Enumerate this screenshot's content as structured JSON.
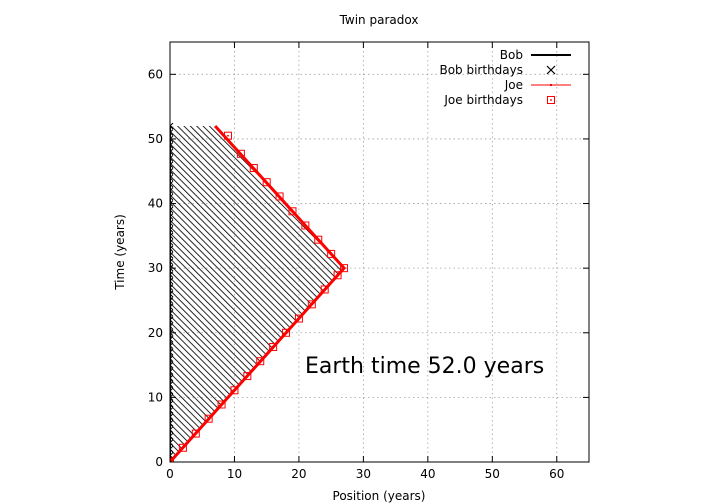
{
  "chart_data": {
    "type": "line",
    "title": "Twin paradox",
    "xlabel": "Position (years)",
    "ylabel": "Time (years)",
    "xlim": [
      0,
      65
    ],
    "ylim": [
      0,
      65
    ],
    "x_ticks": [
      0,
      10,
      20,
      30,
      40,
      50,
      60
    ],
    "y_ticks": [
      0,
      10,
      20,
      30,
      40,
      50,
      60
    ],
    "x_tick_labels": [
      "0",
      "10",
      "20",
      "30",
      "40",
      "50",
      "60"
    ],
    "y_tick_labels": [
      "0",
      "10",
      "20",
      "30",
      "40",
      "50",
      "60"
    ],
    "grid": true,
    "legend_position": "top-right",
    "annotation": "Earth time 52.0 years",
    "colors": {
      "bob": "#000000",
      "joe": "#ff0000"
    },
    "legend": [
      {
        "label": "Bob",
        "style": "line"
      },
      {
        "label": "Bob birthdays",
        "style": "x-marker"
      },
      {
        "label": "Joe",
        "style": "line-point"
      },
      {
        "label": "Joe birthdays",
        "style": "square-marker"
      }
    ],
    "series": [
      {
        "name": "Bob",
        "x": [
          0,
          0
        ],
        "y": [
          0,
          52
        ]
      },
      {
        "name": "Bob birthdays",
        "x": [
          0,
          0,
          0,
          0,
          0,
          0,
          0,
          0,
          0,
          0,
          0,
          0,
          0,
          0,
          0,
          0,
          0,
          0,
          0,
          0,
          0,
          0,
          0,
          0,
          0,
          0,
          0,
          0,
          0,
          0,
          0,
          0,
          0,
          0,
          0,
          0,
          0,
          0,
          0,
          0,
          0,
          0,
          0,
          0,
          0,
          0,
          0,
          0,
          0,
          0,
          0,
          0,
          0
        ],
        "y": [
          0,
          1,
          2,
          3,
          4,
          5,
          6,
          7,
          8,
          9,
          10,
          11,
          12,
          13,
          14,
          15,
          16,
          17,
          18,
          19,
          20,
          21,
          22,
          23,
          24,
          25,
          26,
          27,
          28,
          29,
          30,
          31,
          32,
          33,
          34,
          35,
          36,
          37,
          38,
          39,
          40,
          41,
          42,
          43,
          44,
          45,
          46,
          47,
          48,
          49,
          50,
          51,
          52
        ]
      },
      {
        "name": "Joe",
        "x": [
          0,
          27,
          7
        ],
        "y": [
          0,
          30,
          52
        ]
      },
      {
        "name": "Joe birthdays",
        "x": [
          0,
          2,
          4,
          6,
          8,
          10,
          12,
          14,
          16,
          18,
          20,
          22,
          24,
          26,
          27,
          25,
          23,
          21,
          19,
          17,
          15,
          13,
          11,
          9
        ],
        "y": [
          0,
          2.2,
          4.4,
          6.7,
          8.9,
          11.1,
          13.3,
          15.6,
          17.8,
          20.0,
          22.2,
          24.4,
          26.7,
          28.9,
          30.0,
          32.2,
          34.4,
          36.6,
          38.8,
          41.1,
          43.3,
          45.5,
          47.7,
          50.5
        ]
      }
    ]
  }
}
